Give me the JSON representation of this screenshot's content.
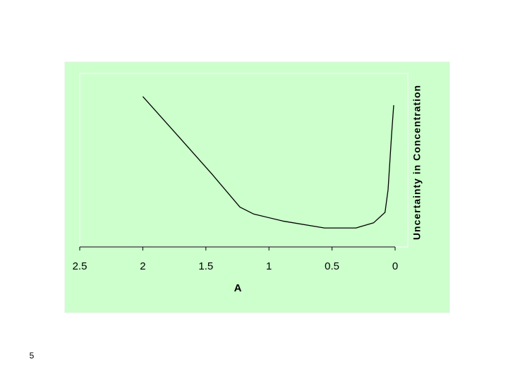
{
  "chart_data": {
    "type": "line",
    "x_label": "A",
    "y_label": "Uncertainty in Concentration",
    "x": [
      2.0,
      1.73,
      1.45,
      1.23,
      1.12,
      0.89,
      0.56,
      0.31,
      0.17,
      0.08,
      0.056,
      0.028,
      0.011
    ],
    "values": [
      87,
      65,
      42,
      23,
      19,
      15,
      11,
      11,
      14,
      20,
      33,
      65,
      82
    ],
    "color": "#000000",
    "xlim": [
      2.5,
      0
    ],
    "xticks": [
      2.5,
      2,
      1.5,
      1,
      0.5,
      0
    ],
    "ylim": [
      0,
      100
    ]
  },
  "slide_number": "5"
}
